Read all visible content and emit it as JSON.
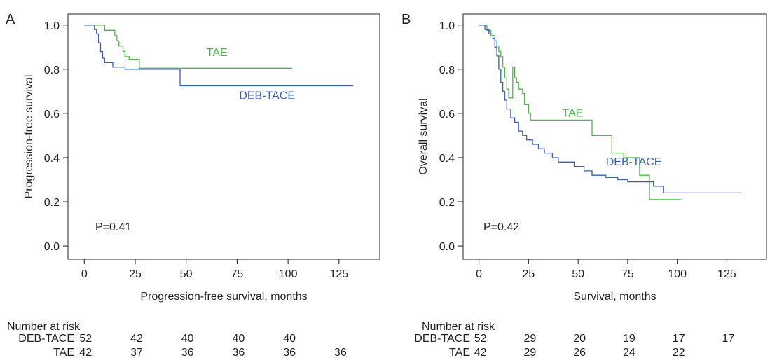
{
  "chart_data": [
    {
      "panel_label": "A",
      "type": "line",
      "xlabel": "Progression-free survival, months",
      "ylabel": "Progression-free survival",
      "xlim": [
        -8,
        145
      ],
      "ylim": [
        -0.06,
        1.05
      ],
      "xticks": [
        "0",
        "25",
        "50",
        "75",
        "100",
        "125"
      ],
      "xtick_values": [
        0,
        25,
        50,
        75,
        100,
        125
      ],
      "yticks": [
        "0.0",
        "0.2",
        "0.4",
        "0.6",
        "0.8",
        "1.0"
      ],
      "ytick_values": [
        0,
        0.2,
        0.4,
        0.6,
        0.8,
        1.0
      ],
      "pvalue": "P=0.41",
      "series": [
        {
          "name": "TAE",
          "color": "#4db848",
          "label_at": [
            60,
            0.86
          ],
          "points": [
            [
              0,
              1.0
            ],
            [
              10,
              1.0
            ],
            [
              10,
              0.976
            ],
            [
              15,
              0.976
            ],
            [
              15,
              0.952
            ],
            [
              16,
              0.952
            ],
            [
              16,
              0.929
            ],
            [
              17,
              0.929
            ],
            [
              17,
              0.905
            ],
            [
              19,
              0.905
            ],
            [
              19,
              0.881
            ],
            [
              20,
              0.881
            ],
            [
              20,
              0.857
            ],
            [
              22,
              0.857
            ],
            [
              22,
              0.845
            ],
            [
              27,
              0.845
            ],
            [
              27,
              0.805
            ],
            [
              102,
              0.805
            ]
          ]
        },
        {
          "name": "DEB-TACE",
          "color": "#3a5fb4",
          "label_at": [
            76,
            0.665
          ],
          "points": [
            [
              0,
              1.0
            ],
            [
              5,
              1.0
            ],
            [
              5,
              0.98
            ],
            [
              6,
              0.98
            ],
            [
              6,
              0.96
            ],
            [
              7,
              0.96
            ],
            [
              7,
              0.92
            ],
            [
              8,
              0.92
            ],
            [
              8,
              0.88
            ],
            [
              9,
              0.88
            ],
            [
              9,
              0.85
            ],
            [
              10,
              0.85
            ],
            [
              10,
              0.83
            ],
            [
              14,
              0.83
            ],
            [
              14,
              0.81
            ],
            [
              20,
              0.81
            ],
            [
              20,
              0.8
            ],
            [
              47,
              0.8
            ],
            [
              47,
              0.725
            ],
            [
              132,
              0.725
            ]
          ]
        }
      ],
      "risk_table": {
        "title": "Number at risk",
        "rows": [
          {
            "label": "DEB-TACE",
            "values": [
              "52",
              "42",
              "40",
              "40",
              "40",
              ""
            ]
          },
          {
            "label": "TAE",
            "values": [
              "42",
              "37",
              "36",
              "36",
              "36",
              "36"
            ]
          }
        ]
      }
    },
    {
      "panel_label": "B",
      "type": "line",
      "xlabel": "Survival, months",
      "ylabel": "Overall survival",
      "xlim": [
        -8,
        145
      ],
      "ylim": [
        -0.06,
        1.05
      ],
      "xticks": [
        "0",
        "25",
        "50",
        "75",
        "100",
        "125"
      ],
      "xtick_values": [
        0,
        25,
        50,
        75,
        100,
        125
      ],
      "yticks": [
        "0.0",
        "0.2",
        "0.4",
        "0.6",
        "0.8",
        "1.0"
      ],
      "ytick_values": [
        0,
        0.2,
        0.4,
        0.6,
        0.8,
        1.0
      ],
      "pvalue": "P=0.42",
      "series": [
        {
          "name": "TAE",
          "color": "#4db848",
          "label_at": [
            42,
            0.585
          ],
          "points": [
            [
              0,
              1.0
            ],
            [
              4,
              1.0
            ],
            [
              4,
              0.976
            ],
            [
              6,
              0.976
            ],
            [
              6,
              0.952
            ],
            [
              8,
              0.952
            ],
            [
              8,
              0.929
            ],
            [
              9,
              0.929
            ],
            [
              9,
              0.905
            ],
            [
              10,
              0.905
            ],
            [
              10,
              0.881
            ],
            [
              11,
              0.881
            ],
            [
              11,
              0.857
            ],
            [
              12,
              0.857
            ],
            [
              12,
              0.81
            ],
            [
              13,
              0.81
            ],
            [
              13,
              0.76
            ],
            [
              14,
              0.76
            ],
            [
              14,
              0.71
            ],
            [
              15,
              0.71
            ],
            [
              15,
              0.67
            ],
            [
              17,
              0.67
            ],
            [
              17,
              0.81
            ],
            [
              18,
              0.81
            ],
            [
              18,
              0.76
            ],
            [
              19,
              0.76
            ],
            [
              19,
              0.74
            ],
            [
              20,
              0.74
            ],
            [
              20,
              0.71
            ],
            [
              22,
              0.71
            ],
            [
              22,
              0.69
            ],
            [
              23,
              0.69
            ],
            [
              23,
              0.64
            ],
            [
              25,
              0.64
            ],
            [
              25,
              0.6
            ],
            [
              26,
              0.6
            ],
            [
              26,
              0.57
            ],
            [
              57,
              0.57
            ],
            [
              57,
              0.5
            ],
            [
              67,
              0.5
            ],
            [
              67,
              0.42
            ],
            [
              73,
              0.42
            ],
            [
              73,
              0.4
            ],
            [
              81,
              0.4
            ],
            [
              81,
              0.32
            ],
            [
              86,
              0.32
            ],
            [
              86,
              0.21
            ],
            [
              102,
              0.21
            ]
          ]
        },
        {
          "name": "DEB-TACE",
          "color": "#3a5fb4",
          "label_at": [
            64,
            0.365
          ],
          "points": [
            [
              0,
              1.0
            ],
            [
              3,
              1.0
            ],
            [
              3,
              0.98
            ],
            [
              5,
              0.98
            ],
            [
              5,
              0.96
            ],
            [
              7,
              0.96
            ],
            [
              7,
              0.94
            ],
            [
              8,
              0.94
            ],
            [
              8,
              0.9
            ],
            [
              9,
              0.9
            ],
            [
              9,
              0.86
            ],
            [
              10,
              0.86
            ],
            [
              10,
              0.8
            ],
            [
              11,
              0.8
            ],
            [
              11,
              0.74
            ],
            [
              12,
              0.74
            ],
            [
              12,
              0.7
            ],
            [
              13,
              0.7
            ],
            [
              13,
              0.66
            ],
            [
              14,
              0.66
            ],
            [
              14,
              0.62
            ],
            [
              16,
              0.62
            ],
            [
              16,
              0.58
            ],
            [
              18,
              0.58
            ],
            [
              18,
              0.56
            ],
            [
              20,
              0.56
            ],
            [
              20,
              0.52
            ],
            [
              22,
              0.52
            ],
            [
              22,
              0.5
            ],
            [
              24,
              0.5
            ],
            [
              24,
              0.48
            ],
            [
              27,
              0.48
            ],
            [
              27,
              0.46
            ],
            [
              30,
              0.46
            ],
            [
              30,
              0.44
            ],
            [
              33,
              0.44
            ],
            [
              33,
              0.42
            ],
            [
              37,
              0.42
            ],
            [
              37,
              0.4
            ],
            [
              40,
              0.4
            ],
            [
              40,
              0.38
            ],
            [
              48,
              0.38
            ],
            [
              48,
              0.36
            ],
            [
              53,
              0.36
            ],
            [
              53,
              0.34
            ],
            [
              57,
              0.34
            ],
            [
              57,
              0.32
            ],
            [
              64,
              0.32
            ],
            [
              64,
              0.31
            ],
            [
              70,
              0.31
            ],
            [
              70,
              0.3
            ],
            [
              75,
              0.3
            ],
            [
              75,
              0.29
            ],
            [
              88,
              0.29
            ],
            [
              88,
              0.27
            ],
            [
              93,
              0.27
            ],
            [
              93,
              0.24
            ],
            [
              132,
              0.24
            ]
          ]
        }
      ],
      "risk_table": {
        "title": "Number at risk",
        "rows": [
          {
            "label": "DEB-TACE",
            "values": [
              "52",
              "29",
              "20",
              "19",
              "17",
              "17"
            ]
          },
          {
            "label": "TAE",
            "values": [
              "42",
              "29",
              "26",
              "24",
              "22",
              ""
            ]
          }
        ]
      }
    }
  ]
}
